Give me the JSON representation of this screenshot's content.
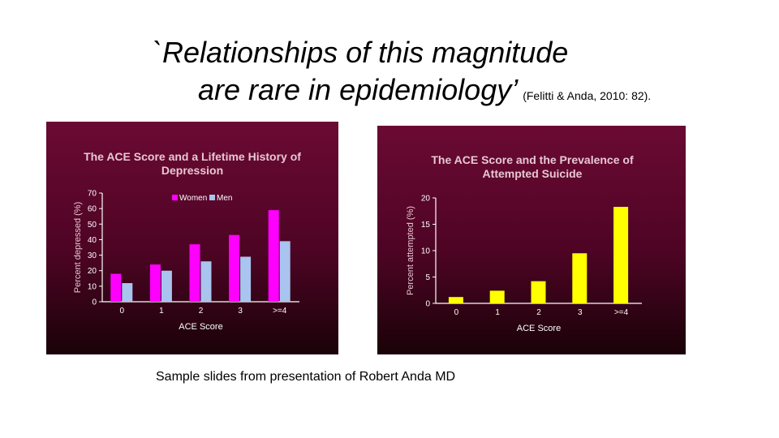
{
  "slide": {
    "title_line1": "`Relationships of this magnitude",
    "title_line2": "are rare in epidemiology’",
    "citation": "(Felitti & Anda, 2010: 82).",
    "caption": "Sample slides from presentation of Robert Anda MD"
  },
  "colors": {
    "panel_top": "#6b0a33",
    "panel_bottom": "#1a0208",
    "women": "#ff00ff",
    "men": "#a9c4ee",
    "suicide": "#ffff00",
    "chart_title": "#e8c7d4"
  },
  "chart_data": [
    {
      "type": "bar",
      "title": "The ACE Score and a Lifetime History of Depression",
      "title_lines": [
        "The ACE Score and a Lifetime History of",
        "Depression"
      ],
      "xlabel": "ACE Score",
      "ylabel": "Percent depressed (%)",
      "categories": [
        "0",
        "1",
        "2",
        "3",
        ">=4"
      ],
      "ylim": [
        0,
        70
      ],
      "yticks": [
        0,
        10,
        20,
        30,
        40,
        50,
        60,
        70
      ],
      "legend": "top-left",
      "series": [
        {
          "name": "Women",
          "color": "#ff00ff",
          "values": [
            18,
            24,
            37,
            43,
            59
          ]
        },
        {
          "name": "Men",
          "color": "#a9c4ee",
          "values": [
            12,
            20,
            26,
            29,
            39
          ]
        }
      ]
    },
    {
      "type": "bar",
      "title": "The ACE Score and the Prevalence of Attempted Suicide",
      "title_lines": [
        "The ACE Score and the Prevalence of",
        "Attempted Suicide"
      ],
      "xlabel": "ACE Score",
      "ylabel": "Percent attempted (%)",
      "categories": [
        "0",
        "1",
        "2",
        "3",
        ">=4"
      ],
      "ylim": [
        0,
        20
      ],
      "yticks": [
        0,
        5,
        10,
        15,
        20
      ],
      "series": [
        {
          "color": "#ffff00",
          "values": [
            1.2,
            2.4,
            4.2,
            9.5,
            18.3
          ]
        }
      ]
    }
  ]
}
